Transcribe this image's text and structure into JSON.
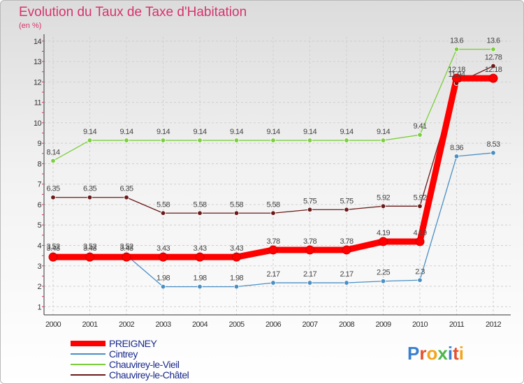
{
  "header": {
    "title": "Evolution du Taux de Taxe d'Habitation",
    "subtitle": "(en %)"
  },
  "chart_data": {
    "type": "line",
    "title": "Evolution du Taux de Taxe d'Habitation",
    "ylabel": "(en %)",
    "x": [
      "2000",
      "2001",
      "2002",
      "2003",
      "2004",
      "2005",
      "2006",
      "2007",
      "2008",
      "2009",
      "2010",
      "2011",
      "2012"
    ],
    "ylim": [
      0.6,
      14.2
    ],
    "yticks": [
      1,
      2,
      3,
      4,
      5,
      6,
      7,
      8,
      9,
      10,
      11,
      12,
      13,
      14
    ],
    "grid": true,
    "series": [
      {
        "name": "PREIGNEY",
        "color": "#ff0000",
        "values": [
          3.43,
          3.43,
          3.43,
          3.43,
          3.43,
          3.43,
          3.78,
          3.78,
          3.78,
          4.19,
          4.19,
          12.18,
          12.18
        ]
      },
      {
        "name": "Cintrey",
        "color": "#4a8fc4",
        "values": [
          3.52,
          3.52,
          3.52,
          1.98,
          1.98,
          1.98,
          2.17,
          2.17,
          2.17,
          2.25,
          2.3,
          8.36,
          8.53
        ]
      },
      {
        "name": "Chauvirey-le-Vieil",
        "color": "#7ccf3c",
        "values": [
          8.14,
          9.14,
          9.14,
          9.14,
          9.14,
          9.14,
          9.14,
          9.14,
          9.14,
          9.14,
          9.41,
          13.6,
          13.6
        ]
      },
      {
        "name": "Chauvirey-le-Châtel",
        "color": "#6b1a1a",
        "values": [
          6.35,
          6.35,
          6.35,
          5.58,
          5.58,
          5.58,
          5.58,
          5.75,
          5.75,
          5.92,
          5.92,
          11.94,
          12.78
        ]
      }
    ],
    "legend": "bottom-left"
  },
  "logo": {
    "letters": [
      "P",
      "r",
      "o",
      "x",
      "i",
      "t",
      "i"
    ],
    "colors": [
      "#3a7fd0",
      "#e6512c",
      "#f2a51b",
      "#4bb748",
      "#3a7fd0",
      "#e6512c",
      "#f2a51b"
    ]
  }
}
